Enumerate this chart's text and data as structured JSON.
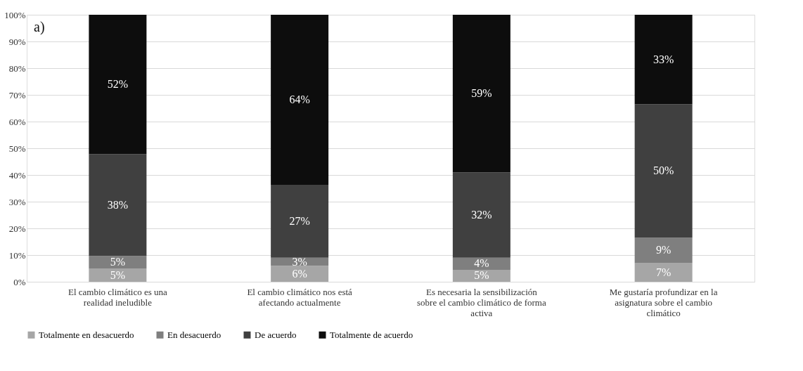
{
  "chart_data": {
    "type": "bar",
    "stacked": true,
    "categories": [
      "El cambio climático es una realidad ineludible",
      "El cambio climático nos está afectando  actualmente",
      "Es necesaria la sensibilización sobre el cambio climático de forma activa",
      "Me gustaría profundizar en la asignatura sobre el cambio climático"
    ],
    "series": [
      {
        "name": "Totalmente en desacuerdo",
        "color": "#a6a6a6",
        "values": [
          5,
          6,
          4.5,
          7
        ],
        "value_labels": [
          "5%",
          "6%",
          "5%",
          "7%"
        ]
      },
      {
        "name": "En desacuerdo",
        "color": "#7f7f7f",
        "values": [
          4.7,
          3,
          4.5,
          9.5
        ],
        "value_labels": [
          "5%",
          "3%",
          "4%",
          "9%"
        ]
      },
      {
        "name": "De acuerdo",
        "color": "#404040",
        "values": [
          38.1,
          27.3,
          32,
          50
        ],
        "value_labels": [
          "38%",
          "27%",
          "32%",
          "50%"
        ]
      },
      {
        "name": "Totalmente de acuerdo",
        "color": "#0d0d0d",
        "values": [
          52.2,
          63.7,
          59,
          33.5
        ],
        "value_labels": [
          "52%",
          "64%",
          "59%",
          "33%"
        ]
      }
    ],
    "ylim": [
      0,
      100
    ],
    "yticks": [
      {
        "value": 0,
        "label": "0%"
      },
      {
        "value": 10,
        "label": "10%"
      },
      {
        "value": 20,
        "label": "20%"
      },
      {
        "value": 30,
        "label": "30%"
      },
      {
        "value": 40,
        "label": "40%"
      },
      {
        "value": 50,
        "label": "50%"
      },
      {
        "value": 60,
        "label": "60%"
      },
      {
        "value": 70,
        "label": "70%"
      },
      {
        "value": 80,
        "label": "80%"
      },
      {
        "value": 90,
        "label": "90%"
      },
      {
        "value": 100,
        "label": "100%"
      }
    ],
    "grid": "y",
    "legend": "bottom",
    "annotations": [
      "a)"
    ]
  }
}
